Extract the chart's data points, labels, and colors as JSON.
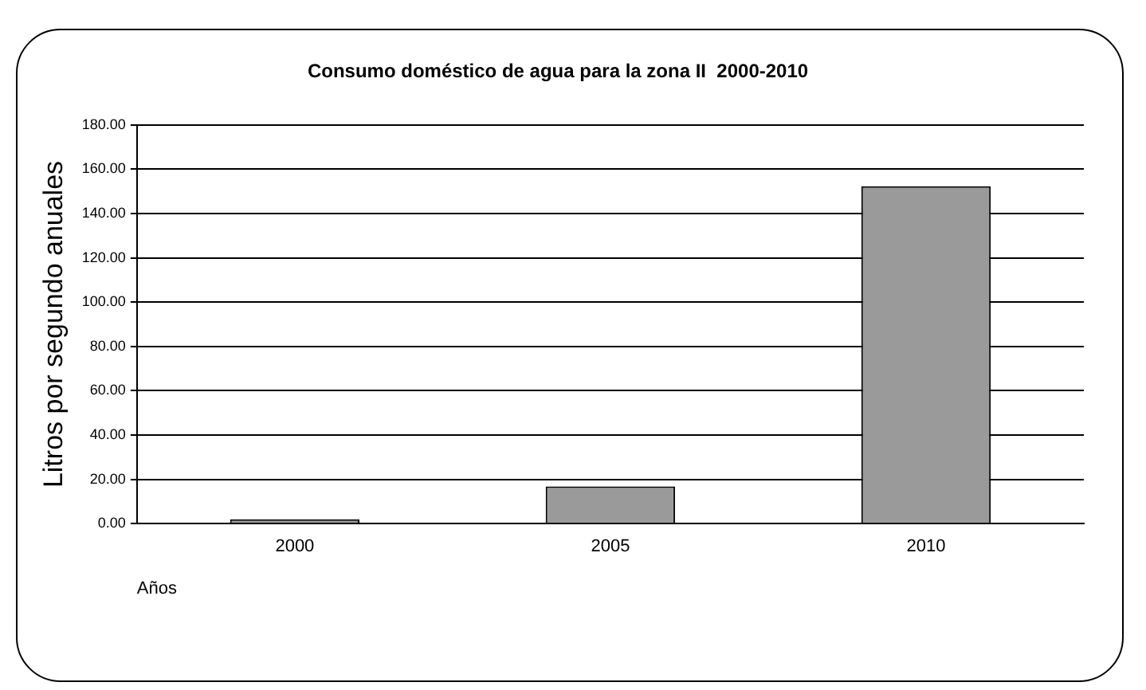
{
  "chart_data": {
    "type": "bar",
    "title": "Consumo doméstico de agua para la zona II  2000-2010",
    "xlabel": "Años",
    "ylabel": "Litros por segundo anuales",
    "categories": [
      "2000",
      "2005",
      "2010"
    ],
    "values": [
      2,
      16.8,
      152.3
    ],
    "color": "#9a9a9a",
    "ylim": [
      0,
      180
    ],
    "yticks": [
      {
        "value": 0,
        "label": "0.00"
      },
      {
        "value": 20,
        "label": "20.00"
      },
      {
        "value": 40,
        "label": "40.00"
      },
      {
        "value": 60,
        "label": "60.00"
      },
      {
        "value": 80,
        "label": "80.00"
      },
      {
        "value": 100,
        "label": "100.00"
      },
      {
        "value": 120,
        "label": "120.00"
      },
      {
        "value": 140,
        "label": "140.00"
      },
      {
        "value": 160,
        "label": "160.00"
      },
      {
        "value": 180,
        "label": "180.00"
      }
    ],
    "grid": "y",
    "legend": false
  }
}
